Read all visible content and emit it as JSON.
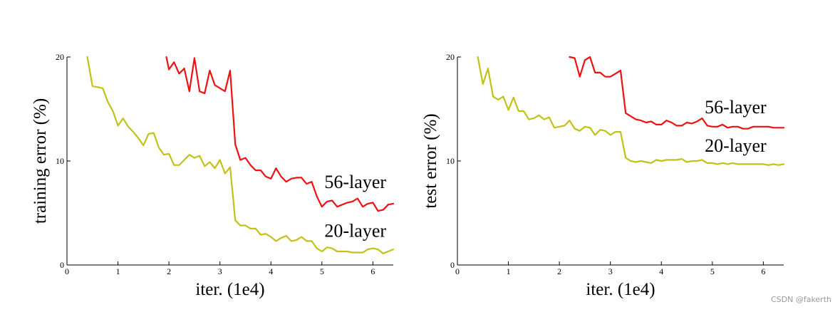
{
  "colors": {
    "red": "#ee1111",
    "olive": "#c2c215",
    "axis": "#000000"
  },
  "watermark": "CSDN @fakerth",
  "chart_data": [
    {
      "type": "line",
      "title": "",
      "xlabel": "iter. (1e4)",
      "ylabel": "training error (%)",
      "xlim": [
        0,
        6.4
      ],
      "ylim": [
        0,
        20
      ],
      "xticks": [
        "0",
        "1",
        "2",
        "3",
        "4",
        "5",
        "6"
      ],
      "yticks": [
        "0",
        "10",
        "20"
      ],
      "grid": false,
      "series": [
        {
          "name": "56-layer",
          "color": "red",
          "x": [
            1.95,
            2.0,
            2.1,
            2.2,
            2.3,
            2.4,
            2.5,
            2.6,
            2.7,
            2.8,
            2.9,
            3.0,
            3.1,
            3.2,
            3.3,
            3.4,
            3.5,
            3.6,
            3.7,
            3.8,
            3.9,
            4.0,
            4.1,
            4.2,
            4.3,
            4.4,
            4.5,
            4.6,
            4.7,
            4.8,
            4.9,
            5.0,
            5.1,
            5.2,
            5.3,
            5.4,
            5.5,
            5.6,
            5.7,
            5.8,
            5.9,
            6.0,
            6.1,
            6.2,
            6.3,
            6.4
          ],
          "y": [
            20.0,
            18.8,
            19.5,
            18.4,
            18.9,
            16.7,
            19.9,
            16.7,
            16.5,
            18.7,
            17.3,
            17.0,
            16.7,
            18.7,
            11.6,
            10.1,
            10.3,
            9.6,
            9.1,
            9.1,
            8.5,
            8.3,
            9.3,
            8.5,
            8.0,
            8.3,
            8.4,
            8.4,
            7.8,
            8.0,
            6.6,
            5.6,
            6.1,
            6.2,
            5.6,
            5.8,
            6.0,
            6.1,
            6.4,
            5.6,
            5.9,
            6.0,
            5.2,
            5.3,
            5.8,
            5.9
          ]
        },
        {
          "name": "20-layer",
          "color": "olive",
          "x": [
            0.4,
            0.5,
            0.6,
            0.7,
            0.8,
            0.9,
            1.0,
            1.1,
            1.2,
            1.3,
            1.4,
            1.5,
            1.6,
            1.7,
            1.8,
            1.9,
            2.0,
            2.1,
            2.2,
            2.3,
            2.4,
            2.5,
            2.6,
            2.7,
            2.8,
            2.9,
            3.0,
            3.1,
            3.2,
            3.3,
            3.4,
            3.5,
            3.6,
            3.7,
            3.8,
            3.9,
            4.0,
            4.1,
            4.2,
            4.3,
            4.4,
            4.5,
            4.6,
            4.7,
            4.8,
            4.9,
            5.0,
            5.1,
            5.2,
            5.3,
            5.4,
            5.5,
            5.6,
            5.7,
            5.8,
            5.9,
            6.0,
            6.1,
            6.2,
            6.3,
            6.4
          ],
          "y": [
            20.0,
            17.2,
            17.1,
            17.0,
            15.7,
            14.8,
            13.4,
            14.1,
            13.3,
            12.8,
            12.2,
            11.5,
            12.6,
            12.7,
            11.3,
            10.6,
            10.7,
            9.6,
            9.6,
            10.1,
            10.6,
            10.3,
            10.5,
            9.5,
            9.9,
            9.3,
            10.1,
            8.8,
            9.4,
            4.3,
            3.8,
            3.8,
            3.5,
            3.5,
            2.9,
            3.0,
            2.7,
            2.3,
            2.6,
            2.8,
            2.3,
            2.4,
            2.7,
            2.3,
            2.3,
            1.6,
            1.3,
            1.7,
            1.6,
            1.3,
            1.3,
            1.3,
            1.2,
            1.2,
            1.2,
            1.5,
            1.6,
            1.5,
            1.1,
            1.3,
            1.5
          ]
        }
      ],
      "annotations": [
        {
          "text": "56-layer",
          "x": 5.05,
          "y": 7.4
        },
        {
          "text": "20-layer",
          "x": 5.05,
          "y": 2.7
        }
      ]
    },
    {
      "type": "line",
      "title": "",
      "xlabel": "iter. (1e4)",
      "ylabel": "test error (%)",
      "xlim": [
        0,
        6.4
      ],
      "ylim": [
        0,
        20
      ],
      "xticks": [
        "0",
        "1",
        "2",
        "3",
        "4",
        "5",
        "6"
      ],
      "yticks": [
        "0",
        "10",
        "20"
      ],
      "grid": false,
      "series": [
        {
          "name": "56-layer",
          "color": "red",
          "x": [
            2.2,
            2.3,
            2.4,
            2.5,
            2.6,
            2.7,
            2.8,
            2.9,
            3.0,
            3.1,
            3.2,
            3.3,
            3.4,
            3.5,
            3.6,
            3.7,
            3.8,
            3.9,
            4.0,
            4.1,
            4.2,
            4.3,
            4.4,
            4.5,
            4.6,
            4.7,
            4.8,
            4.9,
            5.0,
            5.1,
            5.2,
            5.3,
            5.4,
            5.5,
            5.6,
            5.7,
            5.8,
            5.9,
            6.0,
            6.1,
            6.2,
            6.3,
            6.4
          ],
          "y": [
            20.0,
            19.9,
            18.1,
            19.7,
            20.0,
            18.5,
            18.5,
            18.1,
            18.1,
            18.4,
            18.7,
            14.6,
            14.3,
            14.0,
            13.9,
            13.7,
            13.8,
            13.5,
            13.5,
            13.9,
            13.7,
            13.4,
            13.4,
            13.7,
            13.6,
            13.8,
            14.1,
            13.4,
            13.3,
            13.3,
            13.5,
            13.2,
            13.3,
            13.3,
            13.1,
            13.1,
            13.3,
            13.3,
            13.3,
            13.3,
            13.2,
            13.2,
            13.2
          ]
        },
        {
          "name": "20-layer",
          "color": "olive",
          "x": [
            0.4,
            0.5,
            0.6,
            0.7,
            0.8,
            0.9,
            1.0,
            1.1,
            1.2,
            1.3,
            1.4,
            1.5,
            1.6,
            1.7,
            1.8,
            1.9,
            2.0,
            2.1,
            2.2,
            2.3,
            2.4,
            2.5,
            2.6,
            2.7,
            2.8,
            2.9,
            3.0,
            3.1,
            3.2,
            3.3,
            3.4,
            3.5,
            3.6,
            3.7,
            3.8,
            3.9,
            4.0,
            4.1,
            4.2,
            4.3,
            4.4,
            4.5,
            4.6,
            4.7,
            4.8,
            4.9,
            5.0,
            5.1,
            5.2,
            5.3,
            5.4,
            5.5,
            5.6,
            5.7,
            5.8,
            5.9,
            6.0,
            6.1,
            6.2,
            6.3,
            6.4
          ],
          "y": [
            20.0,
            17.4,
            18.9,
            16.2,
            15.9,
            16.2,
            14.9,
            16.1,
            14.8,
            14.8,
            14.0,
            14.1,
            14.4,
            14.0,
            14.2,
            13.2,
            13.3,
            13.4,
            13.9,
            13.1,
            12.9,
            13.3,
            13.2,
            12.5,
            13.0,
            12.9,
            12.5,
            12.8,
            12.8,
            10.3,
            10.0,
            9.9,
            10.0,
            9.9,
            9.8,
            10.1,
            10.0,
            10.1,
            10.1,
            10.1,
            10.2,
            9.9,
            10.0,
            10.0,
            10.1,
            9.8,
            9.8,
            9.7,
            9.8,
            9.7,
            9.8,
            9.7,
            9.7,
            9.7,
            9.7,
            9.7,
            9.7,
            9.6,
            9.7,
            9.6,
            9.7
          ]
        }
      ],
      "annotations": [
        {
          "text": "56-layer",
          "x": 4.85,
          "y": 14.6
        },
        {
          "text": "20-layer",
          "x": 4.85,
          "y": 10.9
        }
      ]
    }
  ]
}
